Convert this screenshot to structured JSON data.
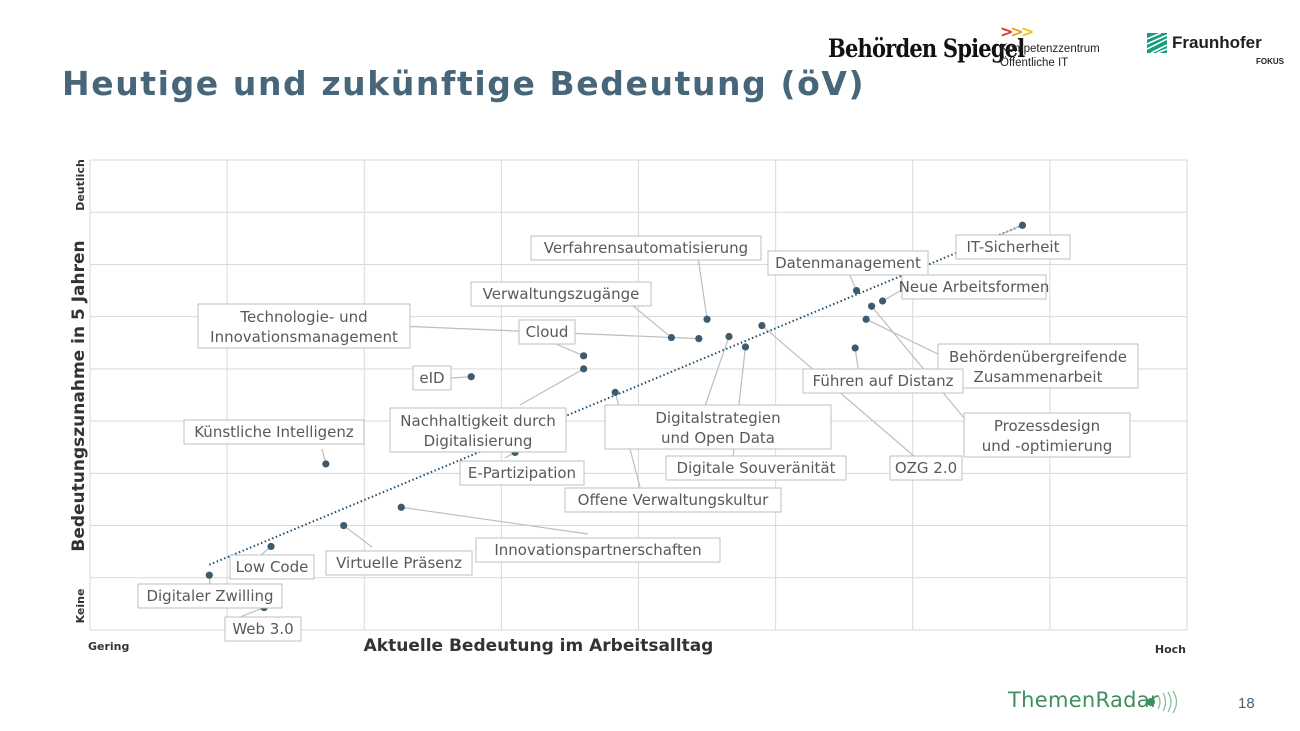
{
  "page": {
    "title": "Heutige und zukünftige Bedeutung (öV)",
    "page_number": "18"
  },
  "logos": {
    "behoerden_spiegel": "Behörden Spiegel",
    "kompetenzzentrum_arrows": ">>>",
    "kompetenzzentrum_line1": "Kompetenzzentrum",
    "kompetenzzentrum_line2": "Öffentliche IT",
    "fraunhofer": "Fraunhofer",
    "fraunhofer_sub": "FOKUS",
    "themenradar": "ThemenRadar"
  },
  "colors": {
    "title": "#47667a",
    "point": "#3e5a6c",
    "trendline": "#1f4e6e",
    "grid": "#d9d9d9",
    "label_border": "#bfbfbf",
    "label_text": "#595959",
    "brand_green": "#3f8f5e"
  },
  "chart_data": {
    "type": "scatter",
    "title": "",
    "xlabel": "Aktuelle Bedeutung im Arbeitsalltag",
    "ylabel": "Bedeutungszunahme in 5 Jahren",
    "x_end_labels": {
      "low": "Gering",
      "high": "Hoch"
    },
    "y_end_labels": {
      "low": "Keine",
      "high": "Deutlich"
    },
    "xlim": [
      0,
      8
    ],
    "ylim": [
      0,
      9
    ],
    "grid": true,
    "trendline": {
      "style": "dotted",
      "from": [
        0.87,
        1.25
      ],
      "to": [
        6.8,
        7.75
      ]
    },
    "points": [
      {
        "name": "IT-Sicherheit",
        "x": 6.8,
        "y": 7.75
      },
      {
        "name": "Verfahrensautomatisierung",
        "x": 4.5,
        "y": 5.95
      },
      {
        "name": "Datenmanagement",
        "x": 5.59,
        "y": 6.5
      },
      {
        "name": "Neue Arbeitsformen",
        "x": 5.78,
        "y": 6.3
      },
      {
        "name": "Verwaltungszugänge",
        "x": 4.24,
        "y": 5.6
      },
      {
        "name": "Technologie- und Innovationsmanagement",
        "x": 4.44,
        "y": 5.58
      },
      {
        "name": "Cloud",
        "x": 3.6,
        "y": 5.25
      },
      {
        "name": "eID",
        "x": 2.78,
        "y": 4.85
      },
      {
        "name": "Nachhaltigkeit durch Digitalisierung",
        "x": 3.6,
        "y": 5.0
      },
      {
        "name": "Behördenübergreifende Zusammenarbeit",
        "x": 5.66,
        "y": 5.95
      },
      {
        "name": "Führen auf Distanz",
        "x": 5.58,
        "y": 5.4
      },
      {
        "name": "Digitalstrategien und Open Data",
        "x": 4.66,
        "y": 5.62
      },
      {
        "name": "Digitale Souveränität",
        "x": 4.78,
        "y": 5.42
      },
      {
        "name": "OZG 2.0",
        "x": 4.9,
        "y": 5.83
      },
      {
        "name": "Prozessdesign und -optimierung",
        "x": 5.7,
        "y": 6.2
      },
      {
        "name": "Künstliche Intelligenz",
        "x": 1.72,
        "y": 3.18
      },
      {
        "name": "E-Partizipation",
        "x": 3.1,
        "y": 3.4
      },
      {
        "name": "Offene Verwaltungskultur",
        "x": 3.83,
        "y": 4.55
      },
      {
        "name": "Innovationspartnerschaften",
        "x": 2.27,
        "y": 2.35
      },
      {
        "name": "Virtuelle Präsenz",
        "x": 1.85,
        "y": 2.0
      },
      {
        "name": "Low Code",
        "x": 1.32,
        "y": 1.6
      },
      {
        "name": "Digitaler Zwilling",
        "x": 0.87,
        "y": 1.05
      },
      {
        "name": "Web 3.0",
        "x": 1.27,
        "y": 0.43
      }
    ]
  }
}
